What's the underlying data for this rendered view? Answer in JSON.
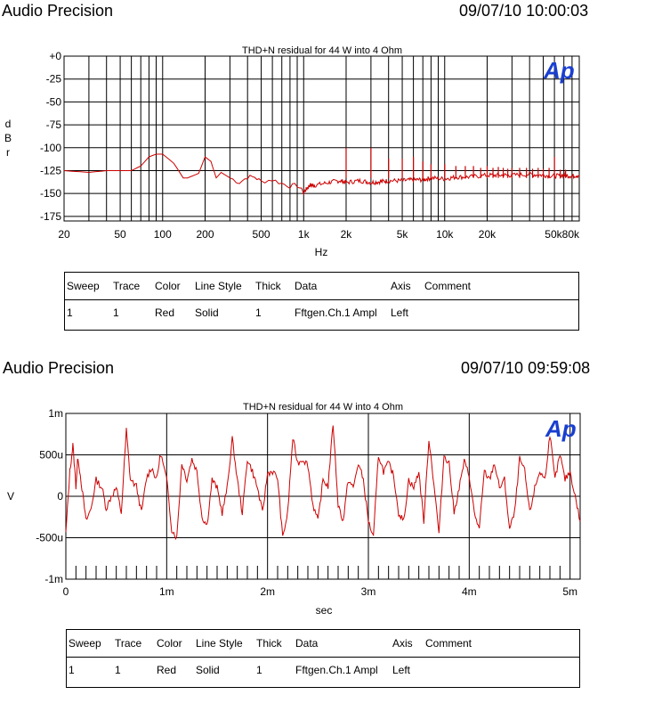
{
  "panels": [
    {
      "header_left": "Audio Precision",
      "header_right": "09/07/10 10:00:03",
      "logo": "Ap",
      "table": {
        "headers": [
          "Sweep",
          "Trace",
          "Color",
          "Line Style",
          "Thick",
          "Data",
          "Axis",
          "Comment"
        ],
        "rows": [
          [
            "1",
            "1",
            "Red",
            "Solid",
            "1",
            "Fftgen.Ch.1 Ampl",
            "Left",
            ""
          ]
        ]
      }
    },
    {
      "header_left": "Audio Precision",
      "header_right": "09/07/10 09:59:08",
      "logo": "Ap",
      "table": {
        "headers": [
          "Sweep",
          "Trace",
          "Color",
          "Line Style",
          "Thick",
          "Data",
          "Axis",
          "Comment"
        ],
        "rows": [
          [
            "1",
            "1",
            "Red",
            "Solid",
            "1",
            "Fftgen.Ch.1 Ampl",
            "Left",
            ""
          ]
        ]
      }
    }
  ],
  "colors": {
    "trace": "#cc0000",
    "logo": "#1a3fcf",
    "grid": "#000000"
  },
  "chart_data": [
    {
      "type": "line",
      "title": "THD+N residual for 44 W into 4 Ohm",
      "xlabel": "Hz",
      "ylabel": "d B r",
      "xscale": "log",
      "xlim": [
        20,
        90000
      ],
      "ylim": [
        -180,
        0
      ],
      "x_tick_labels": [
        "20",
        "50",
        "100",
        "200",
        "500",
        "1k",
        "2k",
        "5k",
        "10k",
        "20k",
        "50k80k"
      ],
      "y_tick_labels": [
        "+0",
        "-25",
        "-50",
        "-75",
        "-100",
        "-125",
        "-150",
        "-175"
      ],
      "grid": true,
      "series": [
        {
          "color": "#cc0000",
          "x": [
            20,
            30,
            40,
            60,
            70,
            80,
            90,
            100,
            120,
            140,
            150,
            180,
            200,
            220,
            240,
            260,
            300,
            350,
            400,
            450,
            500,
            600,
            700,
            800,
            900,
            1000,
            1100,
            1200,
            1500,
            1800,
            2000,
            2500,
            3000,
            3500,
            4000,
            5000,
            6000,
            7000,
            8000,
            10000,
            12000,
            15000,
            20000,
            25000,
            30000,
            40000,
            50000,
            60000,
            70000,
            80000,
            90000
          ],
          "y": [
            -125,
            -127,
            -125,
            -125,
            -120,
            -110,
            -107,
            -107,
            -117,
            -133,
            -133,
            -128,
            -110,
            -115,
            -133,
            -127,
            -133,
            -138,
            -132,
            -132,
            -137,
            -135,
            -139,
            -142,
            -141,
            -149,
            -141,
            -141,
            -138,
            -136,
            -138,
            -136,
            -138,
            -137,
            -136,
            -136,
            -135,
            -135,
            -133,
            -134,
            -132,
            -132,
            -130,
            -130,
            -130,
            -129,
            -130,
            -131,
            -130,
            -131,
            -130
          ]
        }
      ],
      "spikes": [
        {
          "x": 2000,
          "y": -100
        },
        {
          "x": 3000,
          "y": -100
        },
        {
          "x": 4000,
          "y": -112
        },
        {
          "x": 5000,
          "y": -112
        },
        {
          "x": 6000,
          "y": -110
        },
        {
          "x": 7000,
          "y": -115
        },
        {
          "x": 8000,
          "y": -118
        },
        {
          "x": 10000,
          "y": -118
        },
        {
          "x": 12000,
          "y": -120
        },
        {
          "x": 14000,
          "y": -120
        },
        {
          "x": 16000,
          "y": -120
        },
        {
          "x": 18000,
          "y": -122
        },
        {
          "x": 20000,
          "y": -120
        },
        {
          "x": 22000,
          "y": -122
        },
        {
          "x": 24000,
          "y": -121
        },
        {
          "x": 26000,
          "y": -122
        },
        {
          "x": 28000,
          "y": -123
        },
        {
          "x": 30000,
          "y": -122
        },
        {
          "x": 34000,
          "y": -122
        },
        {
          "x": 38000,
          "y": -122
        },
        {
          "x": 42000,
          "y": -123
        },
        {
          "x": 46000,
          "y": -122
        },
        {
          "x": 50000,
          "y": -123
        },
        {
          "x": 55000,
          "y": -122
        },
        {
          "x": 60000,
          "y": -110
        },
        {
          "x": 66000,
          "y": -124
        },
        {
          "x": 72000,
          "y": -124
        }
      ]
    },
    {
      "type": "line",
      "title": "THD+N residual for 44 W into 4 Ohm",
      "xlabel": "sec",
      "ylabel": "V",
      "xlim": [
        0,
        0.0051
      ],
      "ylim": [
        -0.001,
        0.001
      ],
      "x_tick_labels": [
        "0",
        "1m",
        "2m",
        "3m",
        "4m",
        "5m"
      ],
      "y_tick_labels": [
        "1m",
        "500u",
        "0",
        "-500u",
        "-1m"
      ],
      "grid": true,
      "series": [
        {
          "color": "#cc0000",
          "x": [
            0,
            4e-05,
            7e-05,
            0.0001,
            0.00012,
            0.00016,
            0.0002,
            0.00025,
            0.0003,
            0.00036,
            0.0004,
            0.00045,
            0.0005,
            0.00055,
            0.0006,
            0.00064,
            0.0007,
            0.00075,
            0.0008,
            0.00085,
            0.0009,
            0.00094,
            0.001,
            0.00105,
            0.0011,
            0.00115,
            0.0012,
            0.00125,
            0.0013,
            0.00135,
            0.0014,
            0.00145,
            0.0015,
            0.00155,
            0.0016,
            0.00165,
            0.0017,
            0.00175,
            0.0018,
            0.00185,
            0.0019,
            0.00195,
            0.002,
            0.00205,
            0.0021,
            0.00215,
            0.0022,
            0.00225,
            0.0023,
            0.00235,
            0.0024,
            0.00245,
            0.0025,
            0.00255,
            0.0026,
            0.00265,
            0.0027,
            0.00275,
            0.0028,
            0.00285,
            0.0029,
            0.00295,
            0.003,
            0.00305,
            0.0031,
            0.00315,
            0.0032,
            0.00325,
            0.0033,
            0.00335,
            0.0034,
            0.00345,
            0.0035,
            0.00355,
            0.0036,
            0.00365,
            0.0037,
            0.00375,
            0.0038,
            0.00385,
            0.0039,
            0.00395,
            0.004,
            0.00405,
            0.0041,
            0.00415,
            0.0042,
            0.00425,
            0.0043,
            0.00435,
            0.0044,
            0.00445,
            0.0045,
            0.00455,
            0.0046,
            0.00465,
            0.0047,
            0.00475,
            0.0048,
            0.00485,
            0.0049,
            0.00495,
            0.005,
            0.00505,
            0.0051
          ],
          "y": [
            -0.00045,
            0.0003,
            0.00062,
            0.00012,
            0.00048,
            0.0001,
            -0.0003,
            -0.00015,
            0.0002,
            0.0001,
            -0.00015,
            0.0,
            0.0001,
            -0.0002,
            0.0008,
            0.0002,
            0.00012,
            -0.0002,
            0.00022,
            0.00035,
            0.0002,
            0.00052,
            0.0002,
            -0.0004,
            -0.0005,
            0.0004,
            0.0002,
            0.00045,
            0.0003,
            -0.00025,
            -0.00035,
            0.0002,
            0.0001,
            -0.0002,
            0.0001,
            0.0007,
            0.0002,
            -0.0002,
            0.00045,
            0.0003,
            0.0001,
            -0.0002,
            0.00028,
            0.0003,
            0.00022,
            -0.0005,
            -0.0002,
            0.0007,
            0.0004,
            0.00045,
            0.00038,
            -0.0001,
            -0.0003,
            0.0002,
            0.00012,
            0.00088,
            -0.0001,
            -0.0003,
            0.0002,
            0.0001,
            0.0004,
            0.0002,
            -0.0003,
            -0.0005,
            0.0005,
            0.0003,
            0.0004,
            0.00025,
            -0.0002,
            -0.0003,
            0.0002,
            0.0001,
            0.0003,
            -0.0003,
            0.0007,
            0.00015,
            -0.00045,
            0.0005,
            0.0004,
            -0.0002,
            0.0001,
            0.00042,
            0.00025,
            -0.0002,
            -0.0004,
            0.0003,
            0.0002,
            0.0004,
            0.0001,
            0.0002,
            -0.0004,
            -0.0002,
            0.00045,
            0.0003,
            -0.0002,
            0.0001,
            0.0003,
            0.0002,
            0.00075,
            0.0002,
            0.0005,
            0.0002,
            0.0003,
            0.0,
            -0.0003
          ]
        }
      ]
    }
  ]
}
